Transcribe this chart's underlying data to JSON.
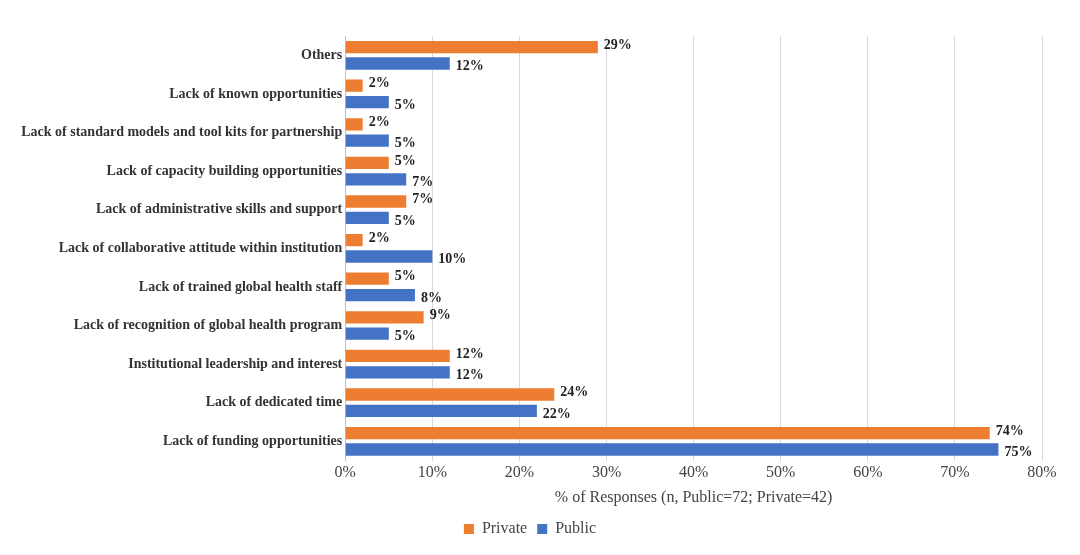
{
  "chart_data": {
    "type": "bar",
    "orientation": "horizontal",
    "xlabel": "% of Responses (n, Public=72; Private=42)",
    "categories": [
      "Others",
      "Lack of known opportunities",
      "Lack of standard models and tool kits for partnership",
      "Lack of capacity building opportunities",
      "Lack of administrative skills and support",
      "Lack of collaborative attitude within institution",
      "Lack of trained global health staff",
      "Lack of recognition of global health program",
      "Institutional leadership and interest",
      "Lack of dedicated time",
      "Lack of funding opportunities"
    ],
    "series": [
      {
        "name": "Private",
        "color": "#ed7d31",
        "values": [
          29,
          2,
          2,
          5,
          7,
          2,
          5,
          9,
          12,
          24,
          74
        ],
        "value_labels": [
          "29%",
          "2%",
          "2%",
          "5%",
          "7%",
          "2%",
          "5%",
          "9%",
          "12%",
          "24%",
          "74%"
        ]
      },
      {
        "name": "Public",
        "color": "#4472c4",
        "values": [
          12,
          5,
          5,
          7,
          5,
          10,
          8,
          5,
          12,
          22,
          75
        ],
        "value_labels": [
          "12%",
          "5%",
          "5%",
          "7%",
          "5%",
          "10%",
          "8%",
          "5%",
          "12%",
          "22%",
          "75%"
        ]
      }
    ],
    "xlim": [
      0,
      80
    ],
    "xticks": [
      {
        "value": 0,
        "label": "0%"
      },
      {
        "value": 10,
        "label": "10%"
      },
      {
        "value": 20,
        "label": "20%"
      },
      {
        "value": 30,
        "label": "30%"
      },
      {
        "value": 40,
        "label": "40%"
      },
      {
        "value": 50,
        "label": "50%"
      },
      {
        "value": 60,
        "label": "60%"
      },
      {
        "value": 70,
        "label": "70%"
      },
      {
        "value": 80,
        "label": "80%"
      }
    ],
    "grid": "x",
    "legend": "bottom"
  }
}
